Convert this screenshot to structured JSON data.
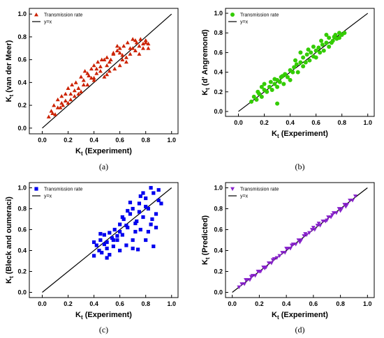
{
  "figure": {
    "panels": [
      {
        "label": "(a)"
      },
      {
        "label": "(b)"
      },
      {
        "label": "(c)"
      },
      {
        "label": "(d)"
      }
    ]
  },
  "chart_data": [
    {
      "type": "scatter",
      "panel_label": "(a)",
      "xlabel": {
        "main": "K",
        "sub": "t",
        "rest": " (Experiment)"
      },
      "ylabel": {
        "main": "K",
        "sub": "t",
        "rest": " (van der Meer)"
      },
      "xlim": [
        -0.1,
        1.05
      ],
      "ylim": [
        -0.05,
        1.05
      ],
      "xticks": [
        "0.0",
        "0.2",
        "0.4",
        "0.6",
        "0.8",
        "1.0"
      ],
      "yticks": [
        "0.0",
        "0.2",
        "0.4",
        "0.6",
        "0.8",
        "1.0"
      ],
      "xtick_values": [
        0.0,
        0.2,
        0.4,
        0.6,
        0.8,
        1.0
      ],
      "ytick_values": [
        0.0,
        0.2,
        0.4,
        0.6,
        0.8,
        1.0
      ],
      "legend": {
        "placement": "top-left",
        "entries": [
          "Transmission rate",
          "y=x"
        ]
      },
      "series": [
        {
          "name": "Transmission rate",
          "marker": "triangle",
          "color": "#cc2200",
          "x": [
            0.05,
            0.07,
            0.09,
            0.1,
            0.12,
            0.14,
            0.15,
            0.16,
            0.18,
            0.2,
            0.2,
            0.22,
            0.23,
            0.25,
            0.26,
            0.28,
            0.3,
            0.3,
            0.32,
            0.33,
            0.35,
            0.36,
            0.38,
            0.4,
            0.4,
            0.42,
            0.43,
            0.45,
            0.46,
            0.48,
            0.5,
            0.5,
            0.52,
            0.53,
            0.55,
            0.56,
            0.58,
            0.6,
            0.6,
            0.62,
            0.63,
            0.65,
            0.66,
            0.68,
            0.7,
            0.7,
            0.72,
            0.73,
            0.75,
            0.76,
            0.78,
            0.8,
            0.8,
            0.82,
            0.15,
            0.25,
            0.35,
            0.45,
            0.55,
            0.65,
            0.75,
            0.12,
            0.22,
            0.32,
            0.42,
            0.52,
            0.62,
            0.72,
            0.82,
            0.18,
            0.28,
            0.38,
            0.48,
            0.58,
            0.68,
            0.78,
            0.08,
            0.6,
            0.5,
            0.4
          ],
          "y": [
            0.1,
            0.15,
            0.2,
            0.12,
            0.25,
            0.18,
            0.28,
            0.2,
            0.3,
            0.22,
            0.35,
            0.3,
            0.38,
            0.28,
            0.4,
            0.35,
            0.45,
            0.32,
            0.42,
            0.5,
            0.38,
            0.46,
            0.52,
            0.42,
            0.55,
            0.48,
            0.58,
            0.5,
            0.6,
            0.45,
            0.55,
            0.62,
            0.5,
            0.6,
            0.65,
            0.52,
            0.68,
            0.55,
            0.7,
            0.6,
            0.72,
            0.62,
            0.75,
            0.65,
            0.7,
            0.78,
            0.68,
            0.75,
            0.72,
            0.78,
            0.7,
            0.75,
            0.77,
            0.74,
            0.22,
            0.33,
            0.48,
            0.54,
            0.66,
            0.58,
            0.65,
            0.18,
            0.25,
            0.38,
            0.52,
            0.58,
            0.64,
            0.77,
            0.7,
            0.24,
            0.3,
            0.44,
            0.6,
            0.72,
            0.7,
            0.74,
            0.13,
            0.66,
            0.47,
            0.44
          ]
        },
        {
          "name": "y=x",
          "type": "line",
          "color": "#000000",
          "x": [
            0.0,
            1.0
          ],
          "y": [
            0.0,
            1.0
          ]
        }
      ]
    },
    {
      "type": "scatter",
      "panel_label": "(b)",
      "xlabel": {
        "main": "K",
        "sub": "t",
        "rest": " (Experiment)"
      },
      "ylabel": {
        "main": "K",
        "sub": "t",
        "rest": " (d' Angremond)"
      },
      "xlim": [
        -0.1,
        1.05
      ],
      "ylim": [
        -0.05,
        1.05
      ],
      "xticks": [
        "0.0",
        "0.2",
        "0.4",
        "0.6",
        "0.8",
        "1.0"
      ],
      "yticks": [
        "0.0",
        "0.2",
        "0.4",
        "0.6",
        "0.8",
        "1.0"
      ],
      "xtick_values": [
        0.0,
        0.2,
        0.4,
        0.6,
        0.8,
        1.0
      ],
      "ytick_values": [
        0.0,
        0.2,
        0.4,
        0.6,
        0.8,
        1.0
      ],
      "legend": {
        "placement": "top-left",
        "entries": [
          "Transmission rate",
          "y=x"
        ]
      },
      "series": [
        {
          "name": "Transmission rate",
          "marker": "circle",
          "color": "#33cc00",
          "x": [
            0.1,
            0.12,
            0.14,
            0.15,
            0.16,
            0.18,
            0.2,
            0.2,
            0.22,
            0.24,
            0.25,
            0.26,
            0.28,
            0.3,
            0.3,
            0.32,
            0.33,
            0.35,
            0.36,
            0.38,
            0.4,
            0.4,
            0.42,
            0.43,
            0.45,
            0.46,
            0.48,
            0.5,
            0.5,
            0.52,
            0.53,
            0.55,
            0.56,
            0.58,
            0.6,
            0.6,
            0.62,
            0.63,
            0.65,
            0.66,
            0.68,
            0.7,
            0.7,
            0.72,
            0.73,
            0.75,
            0.76,
            0.78,
            0.8,
            0.82,
            0.3,
            0.44,
            0.54,
            0.64,
            0.74,
            0.34,
            0.48,
            0.58,
            0.68,
            0.78,
            0.18,
            0.28
          ],
          "y": [
            0.1,
            0.15,
            0.12,
            0.2,
            0.18,
            0.15,
            0.22,
            0.28,
            0.2,
            0.25,
            0.3,
            0.22,
            0.28,
            0.25,
            0.32,
            0.3,
            0.35,
            0.28,
            0.38,
            0.35,
            0.42,
            0.32,
            0.4,
            0.45,
            0.48,
            0.4,
            0.5,
            0.46,
            0.55,
            0.5,
            0.58,
            0.52,
            0.6,
            0.56,
            0.62,
            0.55,
            0.65,
            0.6,
            0.68,
            0.62,
            0.7,
            0.66,
            0.75,
            0.7,
            0.72,
            0.78,
            0.74,
            0.8,
            0.78,
            0.8,
            0.08,
            0.52,
            0.63,
            0.72,
            0.76,
            0.36,
            0.6,
            0.66,
            0.78,
            0.75,
            0.25,
            0.33
          ]
        },
        {
          "name": "y=x",
          "type": "line",
          "color": "#000000",
          "x": [
            0.0,
            1.0
          ],
          "y": [
            0.0,
            1.0
          ]
        }
      ]
    },
    {
      "type": "scatter",
      "panel_label": "(c)",
      "xlabel": {
        "main": "K",
        "sub": "t",
        "rest": " (Experiment)"
      },
      "ylabel": {
        "main": "K",
        "sub": "t",
        "rest": " (Bleck and oumeraci)"
      },
      "xlim": [
        -0.1,
        1.05
      ],
      "ylim": [
        -0.05,
        1.05
      ],
      "xticks": [
        "0.0",
        "0.2",
        "0.4",
        "0.6",
        "0.8",
        "1.0"
      ],
      "yticks": [
        "0.0",
        "0.2",
        "0.4",
        "0.6",
        "0.8",
        "1.0"
      ],
      "xtick_values": [
        0.0,
        0.2,
        0.4,
        0.6,
        0.8,
        1.0
      ],
      "ytick_values": [
        0.0,
        0.2,
        0.4,
        0.6,
        0.8,
        1.0
      ],
      "legend": {
        "placement": "top-left",
        "entries": [
          "Transmission rate",
          "y=x"
        ]
      },
      "series": [
        {
          "name": "Transmission rate",
          "marker": "square",
          "color": "#0000ee",
          "x": [
            0.4,
            0.42,
            0.44,
            0.45,
            0.46,
            0.48,
            0.5,
            0.5,
            0.52,
            0.54,
            0.55,
            0.56,
            0.58,
            0.6,
            0.6,
            0.62,
            0.63,
            0.65,
            0.66,
            0.68,
            0.7,
            0.7,
            0.72,
            0.73,
            0.75,
            0.76,
            0.78,
            0.8,
            0.8,
            0.82,
            0.84,
            0.86,
            0.88,
            0.9,
            0.4,
            0.45,
            0.5,
            0.55,
            0.6,
            0.65,
            0.7,
            0.75,
            0.8,
            0.85,
            0.9,
            0.48,
            0.58,
            0.68,
            0.78,
            0.88,
            0.62,
            0.72,
            0.82,
            0.92,
            0.66,
            0.76,
            0.86,
            0.52,
            0.74,
            0.84
          ],
          "y": [
            0.35,
            0.45,
            0.4,
            0.5,
            0.38,
            0.55,
            0.42,
            0.48,
            0.36,
            0.52,
            0.44,
            0.6,
            0.5,
            0.4,
            0.65,
            0.55,
            0.7,
            0.45,
            0.62,
            0.75,
            0.5,
            0.8,
            0.58,
            0.68,
            0.85,
            0.6,
            0.72,
            0.9,
            0.5,
            0.8,
            0.65,
            0.95,
            0.75,
            0.88,
            0.48,
            0.56,
            0.33,
            0.5,
            0.58,
            0.64,
            0.42,
            0.77,
            0.82,
            0.7,
            0.98,
            0.46,
            0.54,
            0.86,
            0.95,
            0.62,
            0.72,
            0.66,
            0.58,
            0.85,
            0.78,
            0.92,
            0.44,
            0.57,
            0.41,
            1.0
          ],
          "spread": true
        },
        {
          "name": "y=x",
          "type": "line",
          "color": "#000000",
          "x": [
            0.0,
            1.0
          ],
          "y": [
            0.0,
            1.0
          ]
        }
      ]
    },
    {
      "type": "scatter",
      "panel_label": "(d)",
      "xlabel": {
        "main": "K",
        "sub": "t",
        "rest": " (Experiment)"
      },
      "ylabel": {
        "main": "K",
        "sub": "t",
        "rest": " (Predicted)"
      },
      "xlim": [
        -0.05,
        1.05
      ],
      "ylim": [
        -0.05,
        1.05
      ],
      "xticks": [
        "0.0",
        "0.2",
        "0.4",
        "0.6",
        "0.8",
        "1.0"
      ],
      "yticks": [
        "0.0",
        "0.2",
        "0.4",
        "0.6",
        "0.8",
        "1.0"
      ],
      "xtick_values": [
        0.0,
        0.2,
        0.4,
        0.6,
        0.8,
        1.0
      ],
      "ytick_values": [
        0.0,
        0.2,
        0.4,
        0.6,
        0.8,
        1.0
      ],
      "legend": {
        "placement": "top-left",
        "entries": [
          "Transmission rate",
          "y=x"
        ]
      },
      "series": [
        {
          "name": "Transmission rate",
          "marker": "triangle-down",
          "color": "#8822cc",
          "x": [
            0.05,
            0.07,
            0.09,
            0.11,
            0.13,
            0.15,
            0.17,
            0.19,
            0.21,
            0.23,
            0.25,
            0.27,
            0.29,
            0.31,
            0.33,
            0.35,
            0.37,
            0.39,
            0.41,
            0.43,
            0.45,
            0.47,
            0.49,
            0.51,
            0.53,
            0.55,
            0.57,
            0.59,
            0.61,
            0.63,
            0.65,
            0.67,
            0.69,
            0.71,
            0.73,
            0.75,
            0.77,
            0.79,
            0.81,
            0.83,
            0.85,
            0.87,
            0.89,
            0.91,
            0.1,
            0.2,
            0.3,
            0.4,
            0.5,
            0.6,
            0.7,
            0.8,
            0.14,
            0.24,
            0.44,
            0.54,
            0.64,
            0.74,
            0.84
          ],
          "y": [
            0.05,
            0.08,
            0.08,
            0.12,
            0.12,
            0.16,
            0.16,
            0.2,
            0.2,
            0.24,
            0.24,
            0.28,
            0.28,
            0.32,
            0.33,
            0.35,
            0.38,
            0.38,
            0.42,
            0.42,
            0.46,
            0.46,
            0.5,
            0.5,
            0.54,
            0.55,
            0.57,
            0.6,
            0.6,
            0.64,
            0.64,
            0.68,
            0.68,
            0.72,
            0.72,
            0.76,
            0.76,
            0.8,
            0.8,
            0.84,
            0.84,
            0.88,
            0.88,
            0.92,
            0.12,
            0.2,
            0.31,
            0.42,
            0.48,
            0.62,
            0.69,
            0.78,
            0.15,
            0.23,
            0.45,
            0.56,
            0.66,
            0.74,
            0.82
          ]
        },
        {
          "name": "y=x",
          "type": "line",
          "color": "#000000",
          "x": [
            0.0,
            1.0
          ],
          "y": [
            0.0,
            1.0
          ]
        }
      ]
    }
  ]
}
